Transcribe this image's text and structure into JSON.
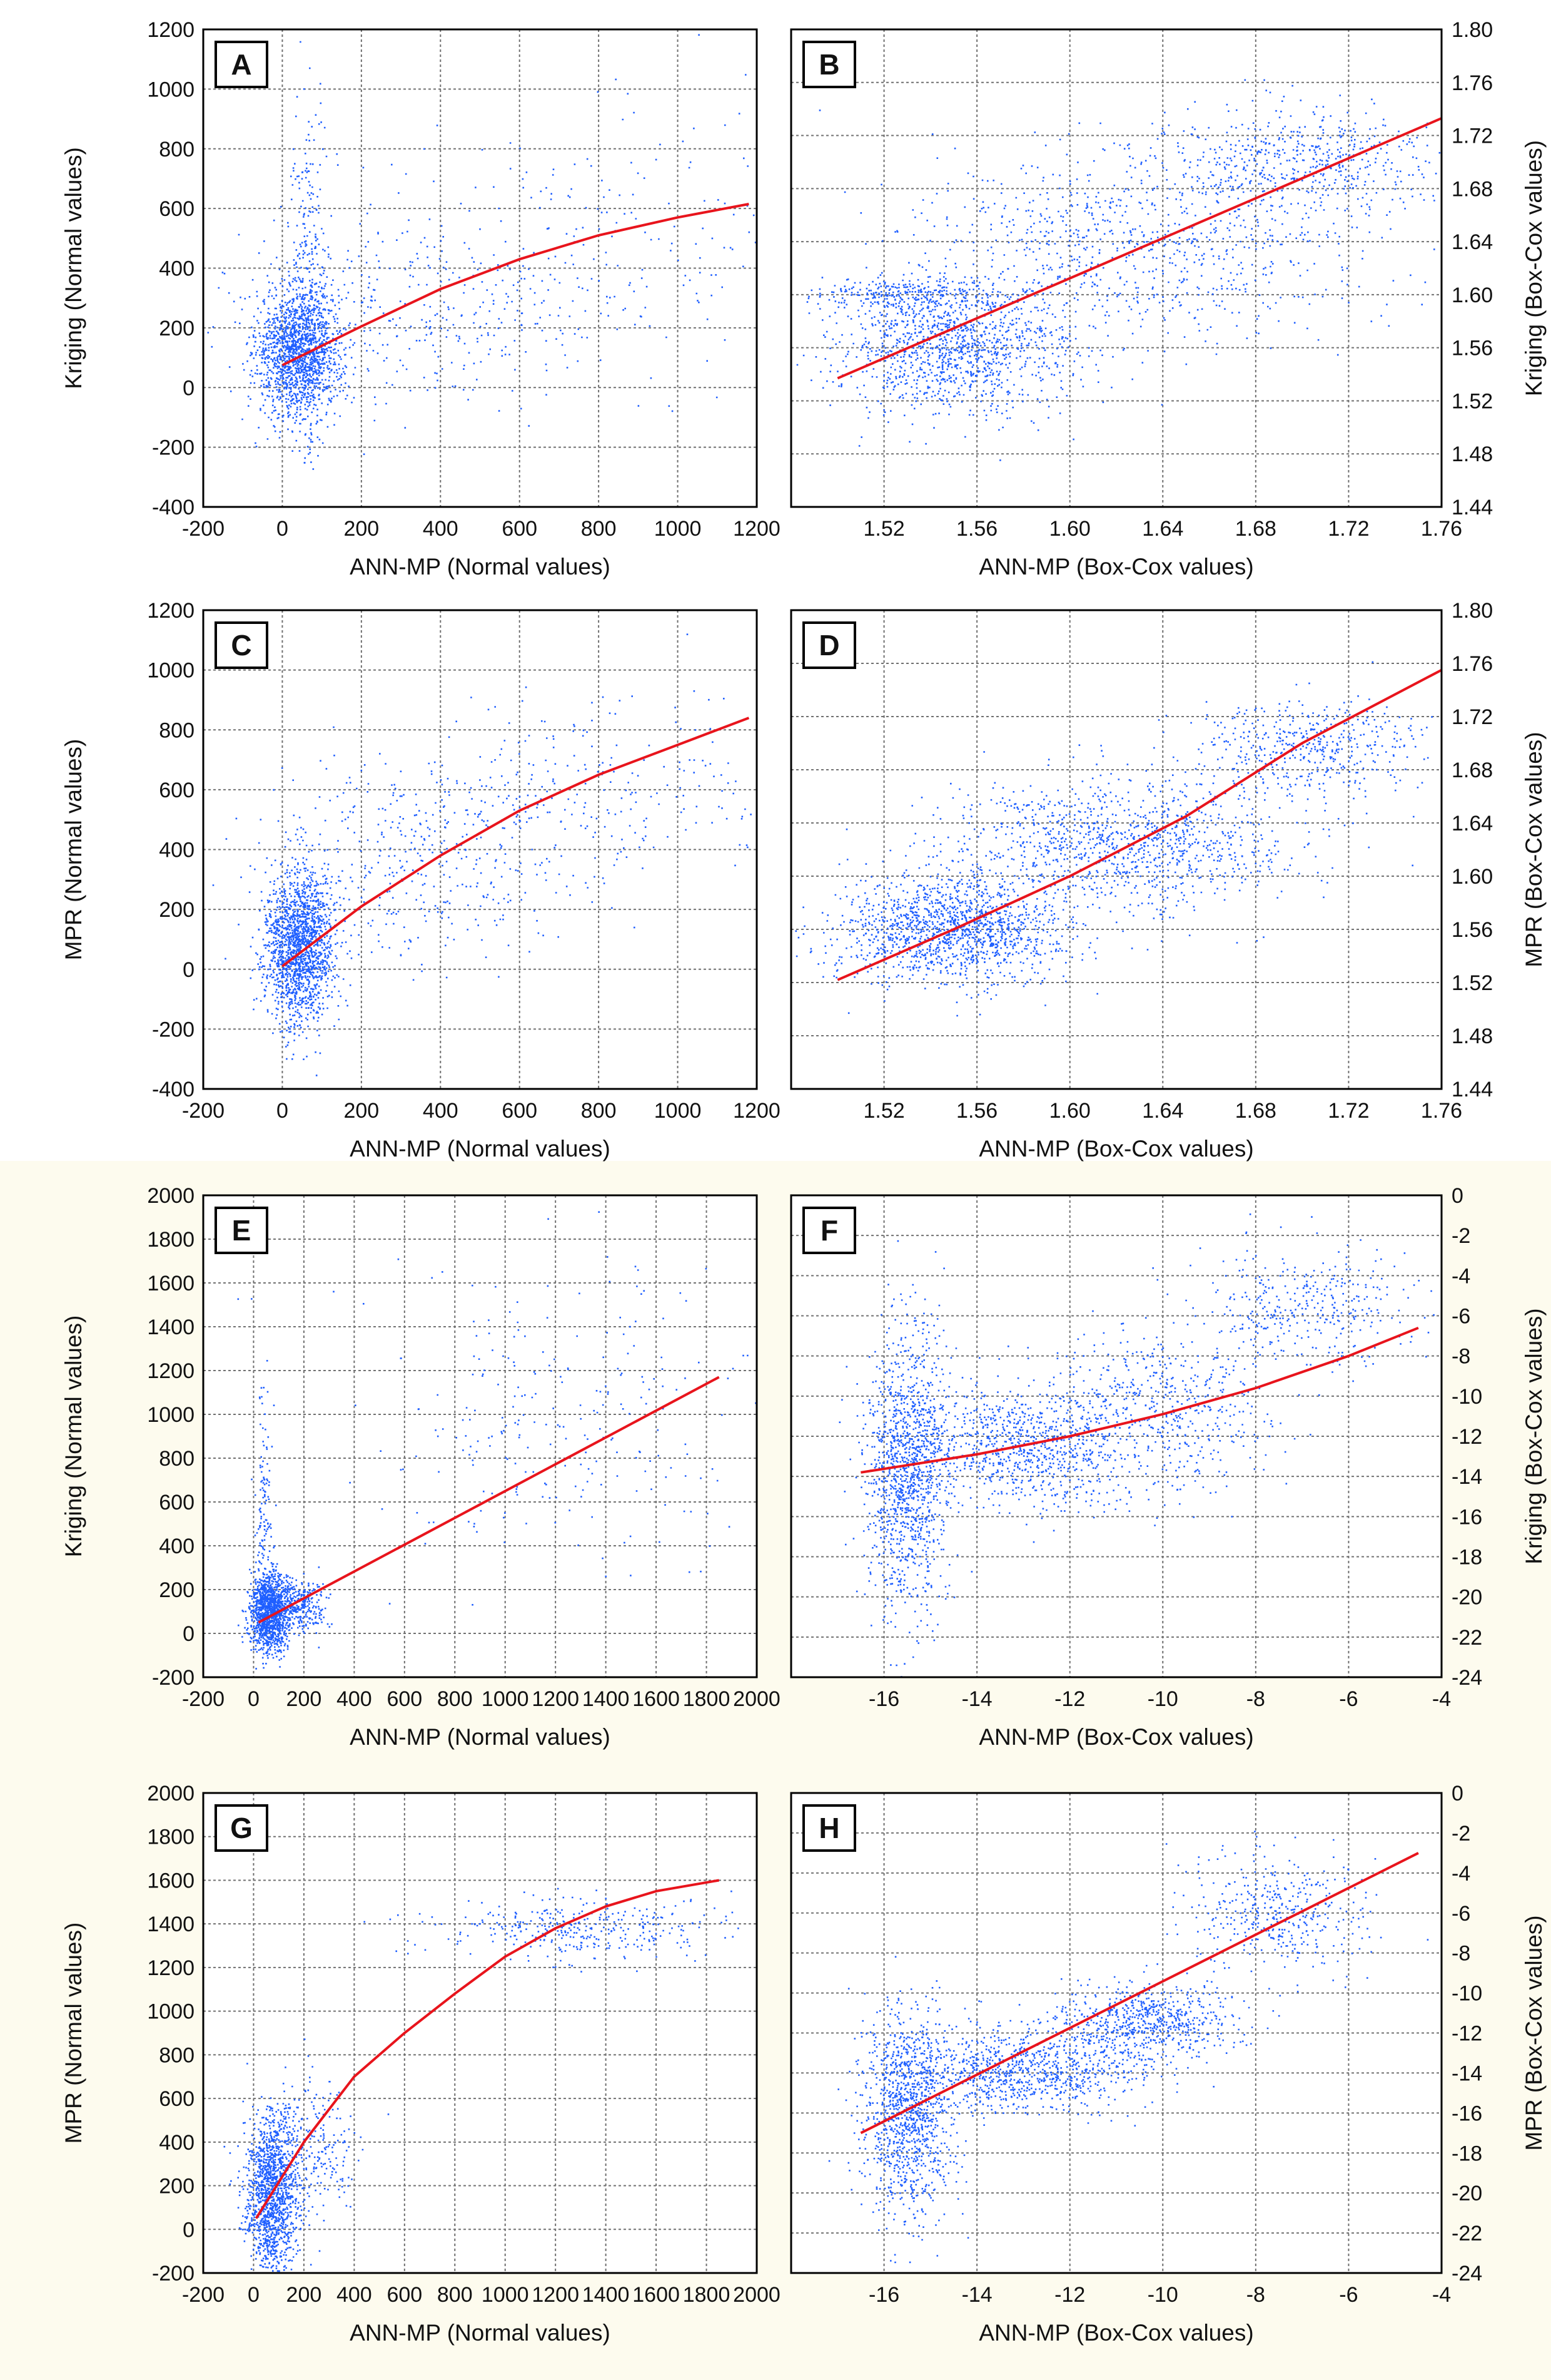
{
  "figure": {
    "background": "#ffffff",
    "band_color": "#fdfbee",
    "point_color": "#1f5fff",
    "curve_color": "#e8141c"
  },
  "chart_data": [
    {
      "id": "A",
      "type": "scatter",
      "label": "A",
      "xlabel": "ANN-MP  (Normal values)",
      "ylabel": "Kriging (Normal values)",
      "ylabel_side": "left",
      "xlim": [
        -200,
        1200
      ],
      "ylim": [
        -400,
        1200
      ],
      "xticks": [
        -200,
        0,
        200,
        400,
        600,
        800,
        1000,
        1200
      ],
      "yticks": [
        -400,
        -200,
        0,
        200,
        400,
        600,
        800,
        1000,
        1200
      ],
      "xtick_labels": [
        "-200",
        "0",
        "200",
        "400",
        "600",
        "800",
        "1000",
        "1200"
      ],
      "ytick_labels": [
        "-400",
        "-200",
        "0",
        "200",
        "400",
        "600",
        "800",
        "1000",
        "1200"
      ],
      "trend": {
        "x": [
          0,
          200,
          400,
          600,
          800,
          1000,
          1180
        ],
        "y": [
          75,
          205,
          330,
          430,
          510,
          570,
          615
        ]
      },
      "clusters": [
        {
          "cx": 40,
          "cy": 120,
          "sx": 55,
          "sy": 110,
          "n": 1500
        },
        {
          "cx": 60,
          "cy": 350,
          "sx": 25,
          "sy": 280,
          "n": 300
        },
        {
          "cx": 350,
          "cy": 260,
          "sx": 250,
          "sy": 150,
          "n": 350
        },
        {
          "cx": 800,
          "cy": 500,
          "sx": 280,
          "sy": 230,
          "n": 200
        }
      ]
    },
    {
      "id": "B",
      "type": "scatter",
      "label": "B",
      "xlabel": "ANN-MP (Box-Cox values)",
      "ylabel": "Kriging (Box-Cox values)",
      "ylabel_side": "right",
      "xlim": [
        1.48,
        1.76
      ],
      "ylim": [
        1.44,
        1.8
      ],
      "xticks": [
        1.52,
        1.56,
        1.6,
        1.64,
        1.68,
        1.72,
        1.76
      ],
      "yticks": [
        1.44,
        1.48,
        1.52,
        1.56,
        1.6,
        1.64,
        1.68,
        1.72,
        1.76,
        1.8
      ],
      "xtick_labels": [
        "1.52",
        "1.56",
        "1.60",
        "1.64",
        "1.68",
        "1.72",
        "1.76"
      ],
      "ytick_labels": [
        "1.44",
        "1.48",
        "1.52",
        "1.56",
        "1.60",
        "1.64",
        "1.68",
        "1.72",
        "1.76",
        "1.80"
      ],
      "trend": {
        "x": [
          1.5,
          1.76
        ],
        "y": [
          1.537,
          1.733
        ]
      },
      "clusters": [
        {
          "cx": 1.55,
          "cy": 1.56,
          "sx": 0.025,
          "sy": 0.025,
          "n": 1200
        },
        {
          "cx": 1.63,
          "cy": 1.64,
          "sx": 0.05,
          "sy": 0.04,
          "n": 900
        },
        {
          "cx": 1.7,
          "cy": 1.7,
          "sx": 0.03,
          "sy": 0.02,
          "n": 500
        },
        {
          "cx": 1.53,
          "cy": 1.6,
          "sx": 0.02,
          "sy": 0.006,
          "n": 250
        }
      ]
    },
    {
      "id": "C",
      "type": "scatter",
      "label": "C",
      "xlabel": "ANN-MP  (Normal values)",
      "ylabel": "MPR (Normal values)",
      "ylabel_side": "left",
      "xlim": [
        -200,
        1200
      ],
      "ylim": [
        -400,
        1200
      ],
      "xticks": [
        -200,
        0,
        200,
        400,
        600,
        800,
        1000,
        1200
      ],
      "yticks": [
        -400,
        -200,
        0,
        200,
        400,
        600,
        800,
        1000,
        1200
      ],
      "xtick_labels": [
        "-200",
        "0",
        "200",
        "400",
        "600",
        "800",
        "1000",
        "1200"
      ],
      "ytick_labels": [
        "-400",
        "-200",
        "0",
        "200",
        "400",
        "600",
        "800",
        "1000",
        "1200"
      ],
      "trend": {
        "x": [
          0,
          200,
          400,
          600,
          800,
          1000,
          1180
        ],
        "y": [
          10,
          210,
          380,
          530,
          650,
          750,
          840
        ]
      },
      "clusters": [
        {
          "cx": 40,
          "cy": 80,
          "sx": 45,
          "sy": 130,
          "n": 1700
        },
        {
          "cx": 350,
          "cy": 350,
          "sx": 200,
          "sy": 180,
          "n": 400
        },
        {
          "cx": 750,
          "cy": 600,
          "sx": 250,
          "sy": 150,
          "n": 250
        }
      ]
    },
    {
      "id": "D",
      "type": "scatter",
      "label": "D",
      "xlabel": "ANN-MP (Box-Cox values)",
      "ylabel": "MPR (Box-Cox values)",
      "ylabel_side": "right",
      "xlim": [
        1.48,
        1.76
      ],
      "ylim": [
        1.44,
        1.8
      ],
      "xticks": [
        1.52,
        1.56,
        1.6,
        1.64,
        1.68,
        1.72,
        1.76
      ],
      "yticks": [
        1.44,
        1.48,
        1.52,
        1.56,
        1.6,
        1.64,
        1.68,
        1.72,
        1.76,
        1.8
      ],
      "xtick_labels": [
        "1.52",
        "1.56",
        "1.60",
        "1.64",
        "1.68",
        "1.72",
        "1.76"
      ],
      "ytick_labels": [
        "1.44",
        "1.48",
        "1.52",
        "1.56",
        "1.60",
        "1.64",
        "1.68",
        "1.72",
        "1.76",
        "1.80"
      ],
      "trend": {
        "x": [
          1.5,
          1.55,
          1.6,
          1.65,
          1.7,
          1.76
        ],
        "y": [
          1.522,
          1.56,
          1.6,
          1.645,
          1.7,
          1.755
        ]
      },
      "clusters": [
        {
          "cx": 1.55,
          "cy": 1.56,
          "sx": 0.025,
          "sy": 0.02,
          "n": 1400
        },
        {
          "cx": 1.62,
          "cy": 1.625,
          "sx": 0.04,
          "sy": 0.025,
          "n": 1100
        },
        {
          "cx": 1.7,
          "cy": 1.7,
          "sx": 0.025,
          "sy": 0.018,
          "n": 450
        }
      ]
    },
    {
      "id": "E",
      "type": "scatter",
      "label": "E",
      "xlabel": "ANN-MP (Normal values)",
      "ylabel": "Kriging (Normal values)",
      "ylabel_side": "left",
      "xlim": [
        -200,
        2000
      ],
      "ylim": [
        -200,
        2000
      ],
      "xticks": [
        -200,
        0,
        200,
        400,
        600,
        800,
        1000,
        1200,
        1400,
        1600,
        1800,
        2000
      ],
      "yticks": [
        -200,
        0,
        200,
        400,
        600,
        800,
        1000,
        1200,
        1400,
        1600,
        1800,
        2000
      ],
      "xtick_labels": [
        "-200",
        "0",
        "200",
        "400",
        "600",
        "800",
        "1000",
        "1200",
        "1400",
        "1600",
        "1800",
        "2000"
      ],
      "ytick_labels": [
        "-200",
        "0",
        "200",
        "400",
        "600",
        "800",
        "1000",
        "1200",
        "1400",
        "1600",
        "1800",
        "2000"
      ],
      "trend": {
        "x": [
          20,
          1850
        ],
        "y": [
          50,
          1170
        ]
      },
      "clusters": [
        {
          "cx": 60,
          "cy": 100,
          "sx": 40,
          "sy": 90,
          "n": 1200
        },
        {
          "cx": 40,
          "cy": 500,
          "sx": 15,
          "sy": 300,
          "n": 150
        },
        {
          "cx": 170,
          "cy": 130,
          "sx": 60,
          "sy": 60,
          "n": 350
        },
        {
          "cx": 1200,
          "cy": 950,
          "sx": 350,
          "sy": 350,
          "n": 250
        }
      ]
    },
    {
      "id": "F",
      "type": "scatter",
      "label": "F",
      "xlabel": "ANN-MP (Box-Cox values)",
      "ylabel": "Kriging (Box-Cox values)",
      "ylabel_side": "right",
      "xlim": [
        -18,
        -4
      ],
      "ylim": [
        -24,
        0
      ],
      "xticks": [
        -16,
        -14,
        -12,
        -10,
        -8,
        -6,
        -4
      ],
      "yticks": [
        -24,
        -22,
        -20,
        -18,
        -16,
        -14,
        -12,
        -10,
        -8,
        -6,
        -4,
        -2,
        0
      ],
      "xtick_labels": [
        "-16",
        "-14",
        "-12",
        "-10",
        "-8",
        "-6",
        "-4"
      ],
      "ytick_labels": [
        "-24",
        "-22",
        "-20",
        "-18",
        "-16",
        "-14",
        "-12",
        "-10",
        "-8",
        "-6",
        "-4",
        "-2",
        "0"
      ],
      "trend": {
        "x": [
          -16.5,
          -14,
          -12,
          -10,
          -8,
          -6,
          -4.5
        ],
        "y": [
          -13.8,
          -12.9,
          -12.0,
          -10.9,
          -9.6,
          -8.0,
          -6.6
        ]
      },
      "clusters": [
        {
          "cx": -15.5,
          "cy": -13.5,
          "sx": 0.45,
          "sy": 3.5,
          "n": 1200
        },
        {
          "cx": -13,
          "cy": -12.5,
          "sx": 1.3,
          "sy": 1.5,
          "n": 900
        },
        {
          "cx": -10,
          "cy": -10.5,
          "sx": 1.2,
          "sy": 2.0,
          "n": 500
        },
        {
          "cx": -7,
          "cy": -5.5,
          "sx": 1.2,
          "sy": 1.5,
          "n": 350
        }
      ]
    },
    {
      "id": "G",
      "type": "scatter",
      "label": "G",
      "xlabel": "ANN-MP (Normal values)",
      "ylabel": "MPR (Normal values)",
      "ylabel_side": "left",
      "xlim": [
        -200,
        2000
      ],
      "ylim": [
        -200,
        2000
      ],
      "xticks": [
        -200,
        0,
        200,
        400,
        600,
        800,
        1000,
        1200,
        1400,
        1600,
        1800,
        2000
      ],
      "yticks": [
        -200,
        0,
        200,
        400,
        600,
        800,
        1000,
        1200,
        1400,
        1600,
        1800,
        2000
      ],
      "xtick_labels": [
        "-200",
        "0",
        "200",
        "400",
        "600",
        "800",
        "1000",
        "1200",
        "1400",
        "1600",
        "1800",
        "2000"
      ],
      "ytick_labels": [
        "-200",
        "0",
        "200",
        "400",
        "600",
        "800",
        "1000",
        "1200",
        "1400",
        "1600",
        "1800",
        "2000"
      ],
      "trend": {
        "x": [
          10,
          200,
          400,
          600,
          800,
          1000,
          1200,
          1400,
          1600,
          1850
        ],
        "y": [
          50,
          400,
          700,
          900,
          1080,
          1250,
          1380,
          1480,
          1550,
          1600
        ]
      },
      "clusters": [
        {
          "cx": 70,
          "cy": 150,
          "sx": 50,
          "sy": 180,
          "n": 1300
        },
        {
          "cx": 200,
          "cy": 380,
          "sx": 100,
          "sy": 150,
          "n": 300
        },
        {
          "cx": 1300,
          "cy": 1380,
          "sx": 300,
          "sy": 70,
          "n": 350
        }
      ]
    },
    {
      "id": "H",
      "type": "scatter",
      "label": "H",
      "xlabel": "ANN-MP (Box-Cox values)",
      "ylabel": "MPR (Box-Cox values)",
      "ylabel_side": "right",
      "xlim": [
        -18,
        -4
      ],
      "ylim": [
        -24,
        0
      ],
      "xticks": [
        -16,
        -14,
        -12,
        -10,
        -8,
        -6,
        -4
      ],
      "yticks": [
        -24,
        -22,
        -20,
        -18,
        -16,
        -14,
        -12,
        -10,
        -8,
        -6,
        -4,
        -2,
        0
      ],
      "xtick_labels": [
        "-16",
        "-14",
        "-12",
        "-10",
        "-8",
        "-6",
        "-4"
      ],
      "ytick_labels": [
        "-24",
        "-22",
        "-20",
        "-18",
        "-16",
        "-14",
        "-12",
        "-10",
        "-8",
        "-6",
        "-4",
        "-2",
        "0"
      ],
      "trend": {
        "x": [
          -16.5,
          -4.5
        ],
        "y": [
          -17.0,
          -3.0
        ]
      },
      "clusters": [
        {
          "cx": -15.5,
          "cy": -16,
          "sx": 0.5,
          "sy": 2.5,
          "n": 1100
        },
        {
          "cx": -13,
          "cy": -14,
          "sx": 1.2,
          "sy": 1.0,
          "n": 800
        },
        {
          "cx": -10.5,
          "cy": -11.5,
          "sx": 1.0,
          "sy": 1.0,
          "n": 700
        },
        {
          "cx": -7.5,
          "cy": -6,
          "sx": 1.0,
          "sy": 1.5,
          "n": 400
        }
      ]
    }
  ]
}
